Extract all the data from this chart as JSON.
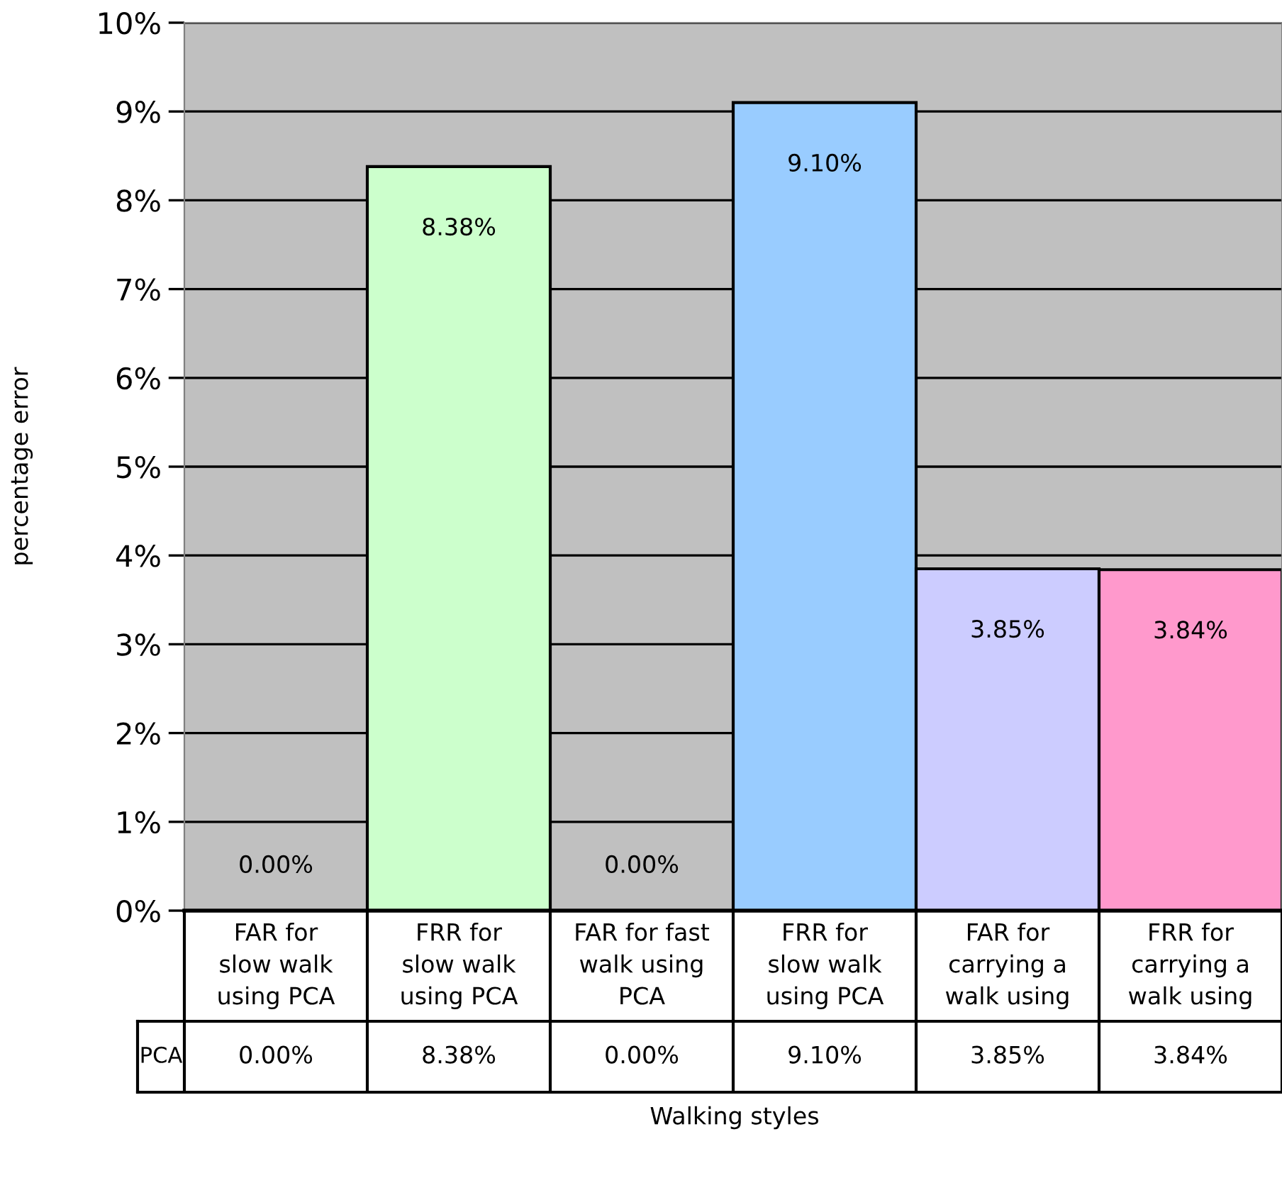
{
  "chart_data": {
    "type": "bar",
    "xlabel": "Walking styles",
    "ylabel": "percentage error",
    "categories": [
      "FAR for\nslow walk\nusing PCA",
      "FRR for\nslow walk\nusing PCA",
      "FAR for fast\nwalk using\nPCA",
      "FRR for\nslow walk\nusing PCA",
      "FAR for\ncarrying a\nwalk using",
      "FRR for\ncarrying a\nwalk using"
    ],
    "series": [
      {
        "name": "PCA",
        "values": [
          0.0,
          8.38,
          0.0,
          9.1,
          3.85,
          3.84
        ],
        "colors": [
          "#cc9966",
          "#ccffcc",
          "#cc6699",
          "#99ccff",
          "#ccccff",
          "#ff99cc"
        ],
        "value_labels": [
          "0.00%",
          "8.38%",
          "0.00%",
          "9.10%",
          "3.85%",
          "3.84%"
        ]
      }
    ],
    "ylim": [
      0,
      10
    ],
    "yticks": [
      {
        "value": 0,
        "label": "0%"
      },
      {
        "value": 1,
        "label": "1%"
      },
      {
        "value": 2,
        "label": "2%"
      },
      {
        "value": 3,
        "label": "3%"
      },
      {
        "value": 4,
        "label": "4%"
      },
      {
        "value": 5,
        "label": "5%"
      },
      {
        "value": 6,
        "label": "6%"
      },
      {
        "value": 7,
        "label": "7%"
      },
      {
        "value": 8,
        "label": "8%"
      },
      {
        "value": 9,
        "label": "9%"
      },
      {
        "value": 10,
        "label": "10%"
      }
    ],
    "grid": "y",
    "data_labels": true,
    "legend": "bottom left"
  }
}
